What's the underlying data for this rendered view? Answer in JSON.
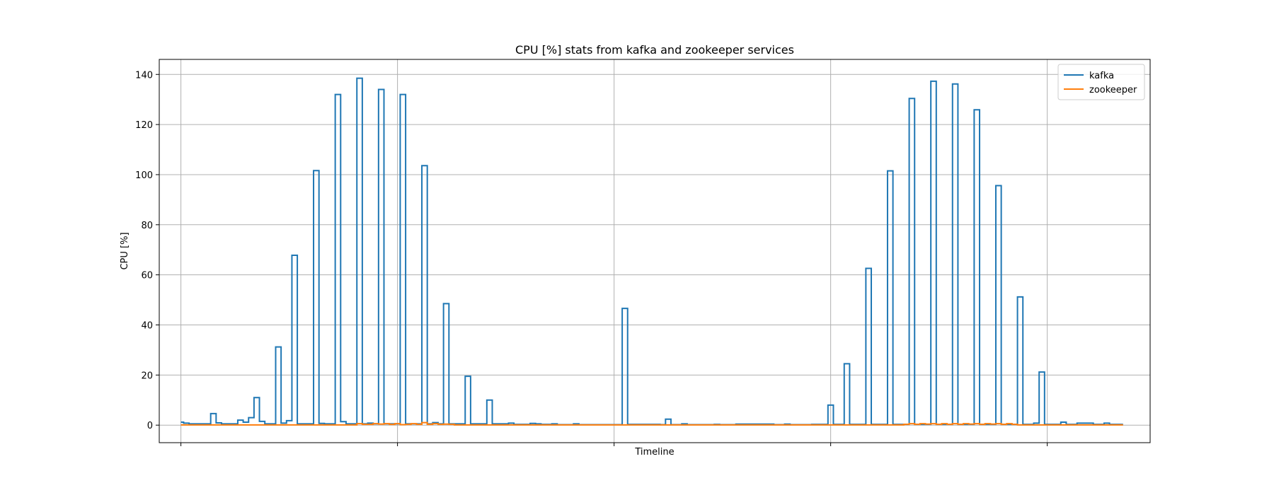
{
  "chart_data": {
    "type": "line",
    "drawstyle": "steps",
    "title": "CPU [%] stats from kafka and zookeeper services",
    "xlabel": "Timeline",
    "ylabel": "CPU [%]",
    "xlim": [
      -4,
      179
    ],
    "ylim": [
      -7,
      146
    ],
    "yticks": [
      0,
      20,
      40,
      60,
      80,
      100,
      120,
      140
    ],
    "yticklabels": [
      "0",
      "20",
      "40",
      "60",
      "80",
      "100",
      "120",
      "140"
    ],
    "xticklabels": [
      "",
      "",
      "",
      "",
      ""
    ],
    "grid": true,
    "legend_position": "upper right",
    "series": [
      {
        "name": "kafka",
        "color": "#1f77b4",
        "values": [
          1.2,
          0.8,
          0.5,
          0.5,
          0.5,
          0.5,
          4.6,
          0.9,
          0.5,
          0.5,
          0.5,
          2.0,
          1.2,
          3.0,
          11.0,
          1.5,
          0.5,
          0.5,
          31.2,
          0.8,
          1.8,
          67.8,
          0.5,
          0.5,
          0.5,
          101.6,
          0.7,
          0.5,
          0.5,
          132.0,
          1.4,
          0.5,
          0.5,
          138.5,
          0.5,
          0.8,
          0.5,
          134.0,
          0.5,
          0.5,
          0.5,
          132.0,
          0.5,
          0.5,
          0.5,
          103.6,
          0.5,
          1.0,
          0.5,
          48.5,
          0.5,
          0.5,
          0.5,
          19.5,
          0.5,
          0.5,
          0.5,
          10.0,
          0.5,
          0.5,
          0.5,
          0.8,
          0.3,
          0.3,
          0.3,
          0.7,
          0.5,
          0.3,
          0.3,
          0.5,
          0.2,
          0.2,
          0.2,
          0.5,
          0.2,
          0.2,
          0.2,
          0.2,
          0.2,
          0.2,
          0.2,
          0.2,
          46.6,
          0.3,
          0.3,
          0.3,
          0.3,
          0.3,
          0.3,
          0.2,
          2.4,
          0.2,
          0.2,
          0.5,
          0.2,
          0.2,
          0.2,
          0.2,
          0.2,
          0.3,
          0.2,
          0.2,
          0.2,
          0.4,
          0.4,
          0.4,
          0.4,
          0.4,
          0.4,
          0.4,
          0.2,
          0.2,
          0.4,
          0.2,
          0.2,
          0.2,
          0.2,
          0.3,
          0.3,
          0.3,
          8.0,
          0.3,
          0.3,
          24.5,
          0.3,
          0.3,
          0.3,
          62.6,
          0.3,
          0.3,
          0.3,
          101.5,
          0.3,
          0.3,
          0.3,
          130.4,
          0.3,
          0.3,
          0.3,
          137.3,
          0.3,
          0.3,
          0.3,
          136.2,
          0.3,
          0.3,
          0.3,
          125.9,
          0.3,
          0.3,
          0.3,
          95.6,
          0.3,
          0.3,
          0.3,
          51.2,
          0.3,
          0.3,
          0.8,
          21.2,
          0.3,
          0.3,
          0.3,
          1.2,
          0.3,
          0.3,
          0.8,
          0.8,
          0.8,
          0.3,
          0.3,
          0.8,
          0.3,
          0.3,
          0.3
        ]
      },
      {
        "name": "zookeeper",
        "color": "#ff7f0e",
        "values": [
          0.1,
          0.1,
          0.1,
          0.1,
          0.1,
          0.1,
          0.1,
          0.1,
          0.1,
          0.1,
          0.1,
          0.1,
          0.1,
          0.1,
          0.1,
          0.1,
          0.1,
          0.1,
          0.1,
          0.1,
          0.1,
          0.1,
          0.1,
          0.1,
          0.1,
          0.1,
          0.1,
          0.1,
          0.1,
          0.1,
          0.1,
          0.1,
          0.1,
          0.6,
          0.3,
          0.3,
          0.6,
          0.4,
          0.6,
          0.3,
          0.6,
          0.2,
          0.3,
          0.6,
          0.3,
          1.0,
          0.3,
          0.6,
          0.3,
          0.4,
          0.3,
          0.1,
          0.1,
          0.1,
          0.1,
          0.1,
          0.1,
          0.1,
          0.1,
          0.1,
          0.1,
          0.1,
          0.1,
          0.1,
          0.1,
          0.1,
          0.1,
          0.1,
          0.1,
          0.1,
          0.1,
          0.1,
          0.1,
          0.1,
          0.1,
          0.1,
          0.1,
          0.1,
          0.1,
          0.1,
          0.1,
          0.1,
          0.1,
          0.1,
          0.1,
          0.1,
          0.1,
          0.1,
          0.1,
          0.1,
          0.1,
          0.1,
          0.1,
          0.1,
          0.1,
          0.1,
          0.1,
          0.1,
          0.1,
          0.1,
          0.1,
          0.1,
          0.1,
          0.1,
          0.1,
          0.1,
          0.1,
          0.1,
          0.1,
          0.1,
          0.1,
          0.1,
          0.1,
          0.1,
          0.1,
          0.1,
          0.1,
          0.1,
          0.1,
          0.1,
          0.1,
          0.1,
          0.1,
          0.1,
          0.1,
          0.1,
          0.1,
          0.1,
          0.1,
          0.1,
          0.1,
          0.1,
          0.1,
          0.1,
          0.3,
          0.6,
          0.3,
          0.6,
          0.4,
          0.6,
          0.3,
          0.6,
          0.3,
          0.6,
          0.3,
          0.6,
          0.4,
          0.6,
          0.3,
          0.6,
          0.4,
          0.6,
          0.3,
          0.6,
          0.3,
          0.1,
          0.1,
          0.1,
          0.1,
          0.1,
          0.1,
          0.1,
          0.1,
          0.1,
          0.1,
          0.1,
          0.1,
          0.1,
          0.1,
          0.1,
          0.1,
          0.1,
          0.1,
          0.1,
          0.1
        ]
      }
    ]
  }
}
